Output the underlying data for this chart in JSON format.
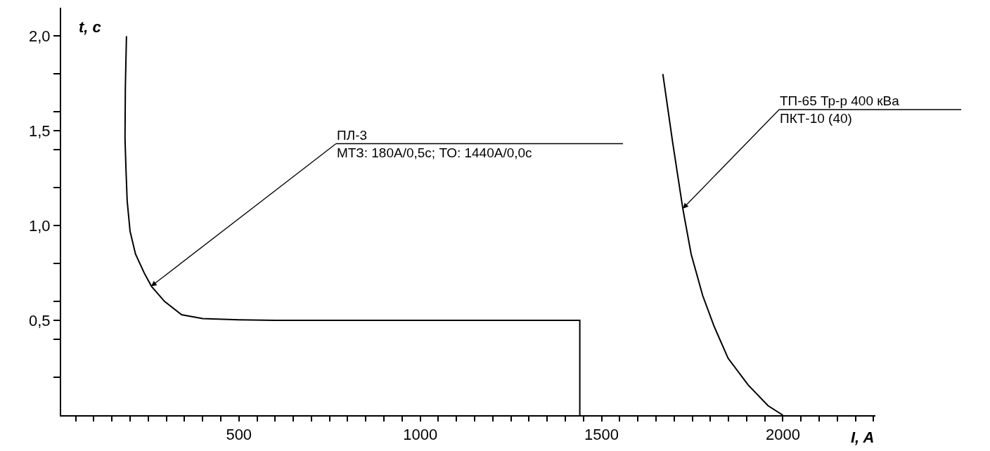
{
  "chart_data": {
    "type": "line",
    "xlabel": "I, A",
    "ylabel": "t, c",
    "xlim": [
      10,
      2255
    ],
    "ylim": [
      0,
      2.15
    ],
    "xticks": [
      {
        "value": 50,
        "label": null
      },
      {
        "value": 100,
        "label": null
      },
      {
        "value": 150,
        "label": null
      },
      {
        "value": 200,
        "label": null
      },
      {
        "value": 250,
        "label": null
      },
      {
        "value": 300,
        "label": null
      },
      {
        "value": 350,
        "label": null
      },
      {
        "value": 400,
        "label": null
      },
      {
        "value": 450,
        "label": null
      },
      500,
      {
        "value": 550,
        "label": null
      },
      {
        "value": 600,
        "label": null
      },
      {
        "value": 650,
        "label": null
      },
      {
        "value": 700,
        "label": null
      },
      {
        "value": 750,
        "label": null
      },
      {
        "value": 800,
        "label": null
      },
      {
        "value": 850,
        "label": null
      },
      {
        "value": 900,
        "label": null
      },
      {
        "value": 950,
        "label": null
      },
      1000,
      {
        "value": 1050,
        "label": null
      },
      {
        "value": 1100,
        "label": null
      },
      {
        "value": 1150,
        "label": null
      },
      {
        "value": 1200,
        "label": null
      },
      {
        "value": 1250,
        "label": null
      },
      {
        "value": 1300,
        "label": null
      },
      {
        "value": 1350,
        "label": null
      },
      {
        "value": 1400,
        "label": null
      },
      {
        "value": 1450,
        "label": null
      },
      1500,
      {
        "value": 1550,
        "label": null
      },
      {
        "value": 1600,
        "label": null
      },
      {
        "value": 1650,
        "label": null
      },
      {
        "value": 1700,
        "label": null
      },
      {
        "value": 1750,
        "label": null
      },
      {
        "value": 1800,
        "label": null
      },
      {
        "value": 1850,
        "label": null
      },
      {
        "value": 1900,
        "label": null
      },
      {
        "value": 1950,
        "label": null
      },
      2000,
      {
        "value": 2050,
        "label": null
      },
      {
        "value": 2100,
        "label": null
      },
      {
        "value": 2150,
        "label": null
      },
      {
        "value": 2200,
        "label": null
      },
      {
        "value": 2250,
        "label": null
      }
    ],
    "yticks": [
      {
        "value": 0.2,
        "label": null
      },
      {
        "value": 0.4,
        "label": null
      },
      {
        "value": 0.5,
        "label": "0,5"
      },
      {
        "value": 0.6,
        "label": null
      },
      {
        "value": 0.8,
        "label": null
      },
      {
        "value": 1.0,
        "label": "1,0"
      },
      {
        "value": 1.2,
        "label": null
      },
      {
        "value": 1.4,
        "label": null
      },
      {
        "value": 1.5,
        "label": "1,5"
      },
      {
        "value": 1.6,
        "label": null
      },
      {
        "value": 1.8,
        "label": null
      },
      {
        "value": 2.0,
        "label": "2,0"
      }
    ],
    "marker": "none",
    "line_style": "solid",
    "series": [
      {
        "color": "#000000",
        "x": [
          190,
          187,
          186,
          189,
          192,
          200,
          215,
          239,
          259,
          295,
          342,
          400,
          500,
          600,
          1440,
          1440
        ],
        "values": [
          2.0,
          1.73,
          1.46,
          1.28,
          1.13,
          0.97,
          0.85,
          0.75,
          0.68,
          0.6,
          0.53,
          0.51,
          0.503,
          0.5,
          0.5,
          0
        ]
      },
      {
        "color": "#000000",
        "x": [
          1669,
          1696,
          1724,
          1747,
          1779,
          1810,
          1849,
          1904,
          1959,
          2000
        ],
        "values": [
          1.8,
          1.44,
          1.09,
          0.85,
          0.63,
          0.47,
          0.3,
          0.16,
          0.05,
          0
        ]
      }
    ],
    "annotations": [
      {
        "text": "ПЛ-3\nМТЗ: 180А/0,5с; ТО: 1440А/0,0с",
        "x": 258,
        "y": 0.68
      },
      {
        "text": "ТП-65 Тр-р 400 кВа\nПКТ-10 (40)",
        "x": 1724,
        "y": 1.09
      }
    ]
  }
}
